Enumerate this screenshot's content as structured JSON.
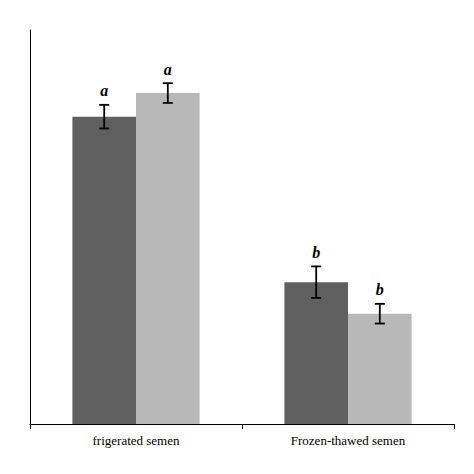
{
  "chart_data": {
    "type": "bar",
    "categories": [
      "frigerated semen",
      "Frozen-thawed semen"
    ],
    "series": [
      {
        "color": "#606060",
        "values": [
          78,
          36
        ],
        "errors": [
          3,
          4
        ],
        "annotations": [
          "a",
          "b"
        ]
      },
      {
        "color": "#b8b8b8",
        "values": [
          84,
          28
        ],
        "errors": [
          2.5,
          2.5
        ],
        "annotations": [
          "a",
          "b"
        ]
      }
    ],
    "ylim": [
      0,
      100
    ],
    "yticks": [],
    "grid": false,
    "tick_labels": "x"
  }
}
